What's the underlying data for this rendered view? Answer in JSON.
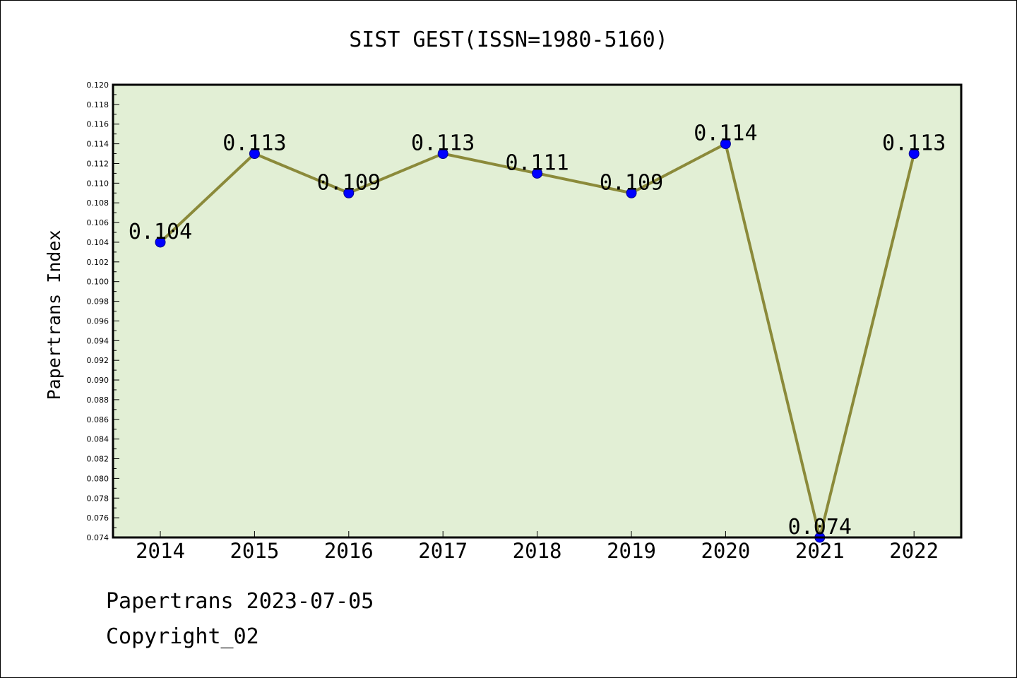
{
  "chart_data": {
    "type": "line",
    "title": "SIST GEST(ISSN=1980-5160)",
    "xlabel": "",
    "ylabel": "Papertrans Index",
    "categories": [
      "2014",
      "2015",
      "2016",
      "2017",
      "2018",
      "2019",
      "2020",
      "2021",
      "2022"
    ],
    "values": [
      0.104,
      0.113,
      0.109,
      0.113,
      0.111,
      0.109,
      0.114,
      0.074,
      0.113
    ],
    "data_labels": [
      "0.104",
      "0.113",
      "0.109",
      "0.113",
      "0.111",
      "0.109",
      "0.114",
      "0.074",
      "0.113"
    ],
    "ylim": [
      0.074,
      0.12
    ],
    "yticks": [
      "0.074",
      "0.076",
      "0.078",
      "0.080",
      "0.082",
      "0.084",
      "0.086",
      "0.088",
      "0.090",
      "0.092",
      "0.094",
      "0.096",
      "0.098",
      "0.100",
      "0.102",
      "0.104",
      "0.106",
      "0.108",
      "0.110",
      "0.112",
      "0.114",
      "0.116",
      "0.118",
      "0.120"
    ],
    "grid": false,
    "legend": "none",
    "colors": {
      "plot_background": "#e2efd5",
      "line": "#8b8a3a",
      "marker": "#0000ff"
    }
  },
  "footer": {
    "line1": "Papertrans 2023-07-05",
    "line2": "Copyright_02"
  }
}
